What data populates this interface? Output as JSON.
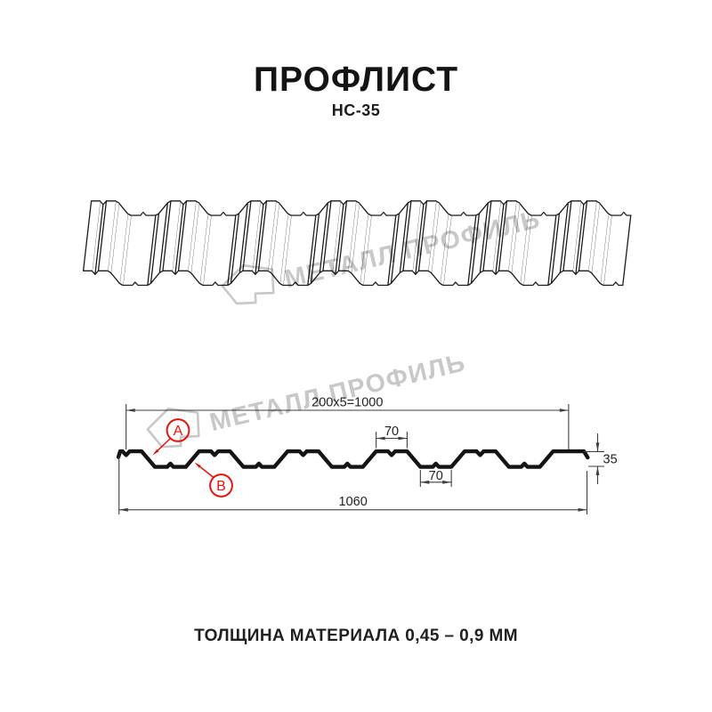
{
  "header": {
    "title": "ПРОФЛИСТ",
    "subtitle": "НС-35"
  },
  "watermark": {
    "brand": "МЕТАЛЛ ПРОФИЛЬ"
  },
  "cross_section": {
    "dim_module_total": "200x5=1000",
    "dim_rib_top": "70",
    "dim_rib_bottom": "70",
    "dim_total_width": "1060",
    "dim_height": "35",
    "label_a": "А",
    "label_b": "В"
  },
  "spec": {
    "module_mm": 200,
    "modules_count": 5,
    "working_width_mm": 1000,
    "total_width_mm": 1060,
    "profile_height_mm": 35,
    "rib_top_width_mm": 70,
    "rib_bottom_width_mm": 70
  },
  "footer": {
    "note": "ТОЛЩИНА МАТЕРИАЛА 0,45 – 0,9 ММ"
  },
  "colors": {
    "ink": "#1c1c1c",
    "profile_line": "#141414",
    "dim_line": "#3f3f3f",
    "dim_text": "#222222",
    "accent_red": "#e8130d",
    "watermark_gray": "#c8c8c8"
  }
}
